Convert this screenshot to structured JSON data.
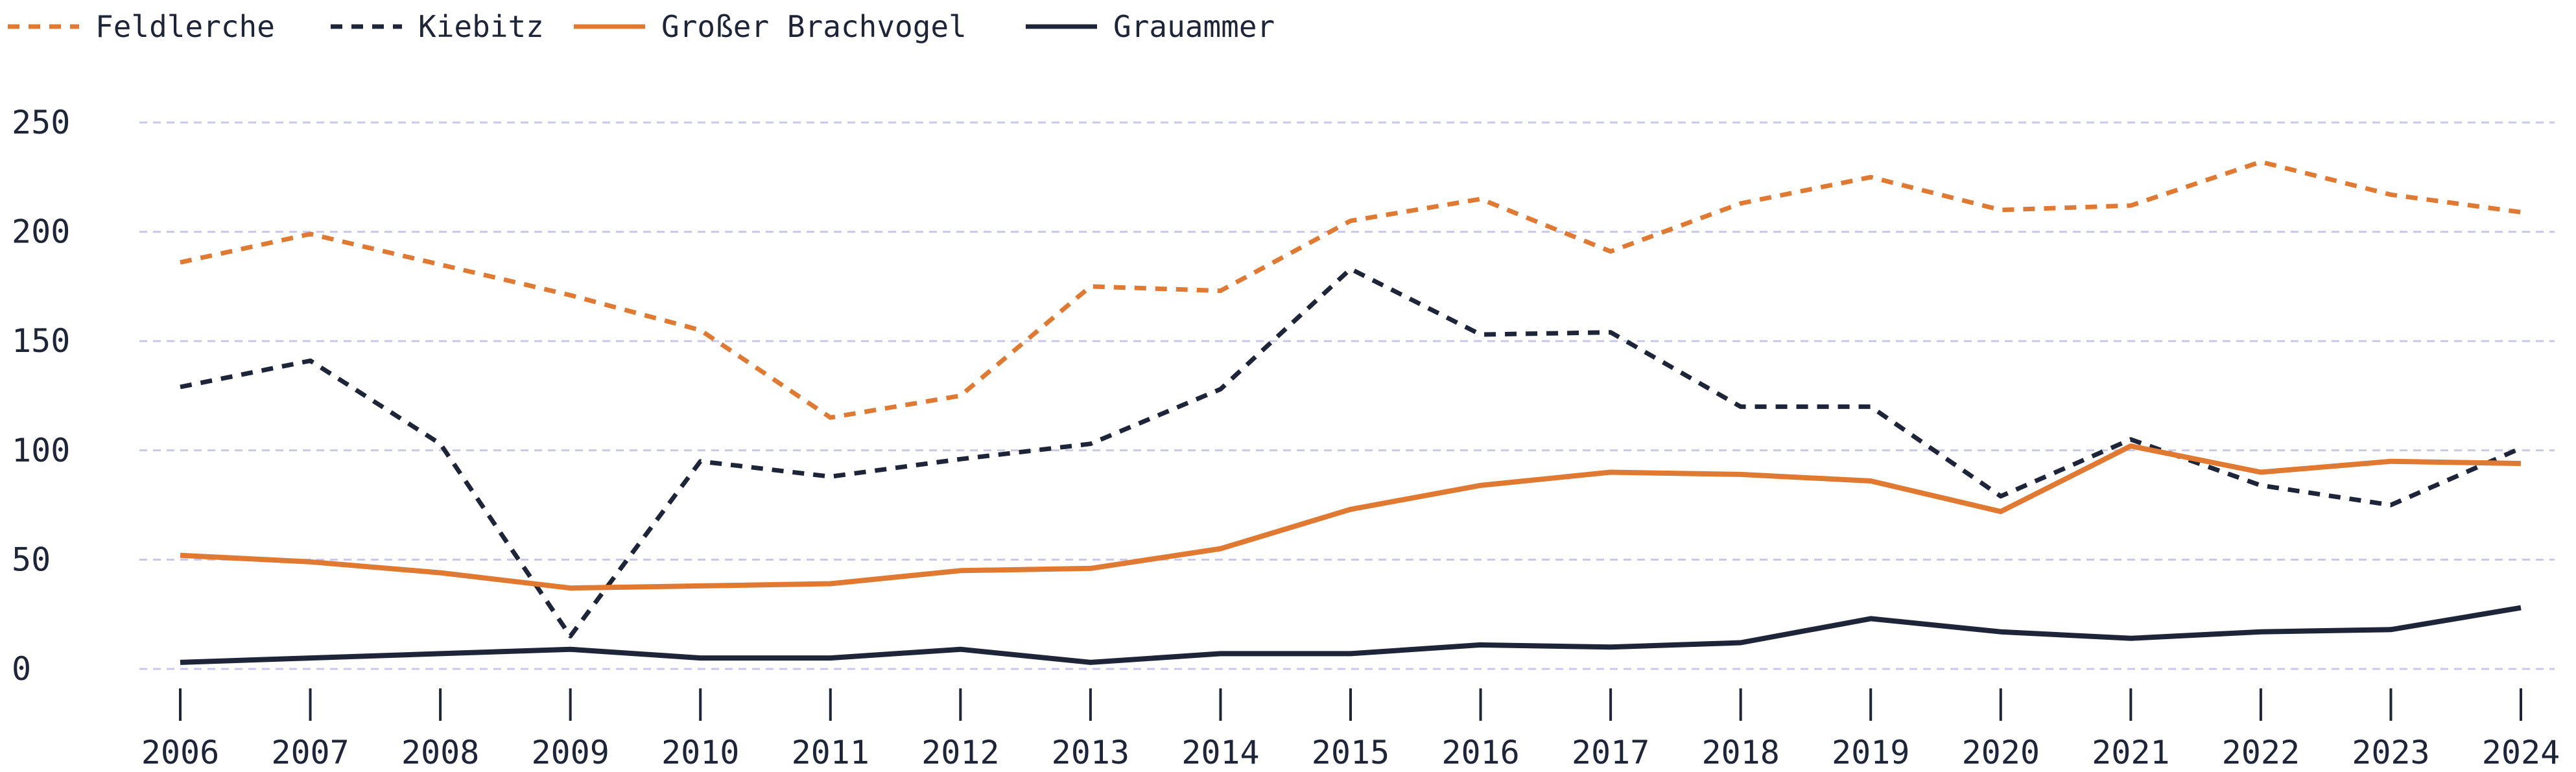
{
  "chart_data": {
    "type": "line",
    "x": [
      "2006",
      "2007",
      "2008",
      "2009",
      "2010",
      "2011",
      "2012",
      "2013",
      "2014",
      "2015",
      "2016",
      "2017",
      "2018",
      "2019",
      "2020",
      "2021",
      "2022",
      "2023",
      "2024"
    ],
    "ylim": [
      0,
      250
    ],
    "yticks": [
      0,
      50,
      100,
      150,
      200,
      250
    ],
    "grid": true,
    "legend": "top-left",
    "series": [
      {
        "name": "Feldlerche",
        "color": "#e07a32",
        "style": "dashed",
        "values": [
          186,
          199,
          185,
          171,
          155,
          115,
          125,
          175,
          173,
          205,
          215,
          191,
          213,
          225,
          210,
          212,
          232,
          217,
          209
        ]
      },
      {
        "name": "Kiebitz",
        "color": "#1f2538",
        "style": "dashed",
        "values": [
          129,
          141,
          103,
          15,
          95,
          88,
          96,
          103,
          128,
          183,
          153,
          154,
          120,
          120,
          79,
          105,
          84,
          75,
          101
        ]
      },
      {
        "name": "Großer Brachvogel",
        "color": "#e07a32",
        "style": "solid",
        "values": [
          52,
          49,
          44,
          37,
          38,
          39,
          45,
          46,
          55,
          73,
          84,
          90,
          89,
          86,
          72,
          102,
          90,
          95,
          94
        ]
      },
      {
        "name": "Grauammer",
        "color": "#1f2538",
        "style": "solid",
        "values": [
          3,
          5,
          7,
          9,
          5,
          5,
          9,
          3,
          7,
          7,
          11,
          10,
          12,
          23,
          17,
          14,
          17,
          18,
          28
        ]
      }
    ]
  }
}
